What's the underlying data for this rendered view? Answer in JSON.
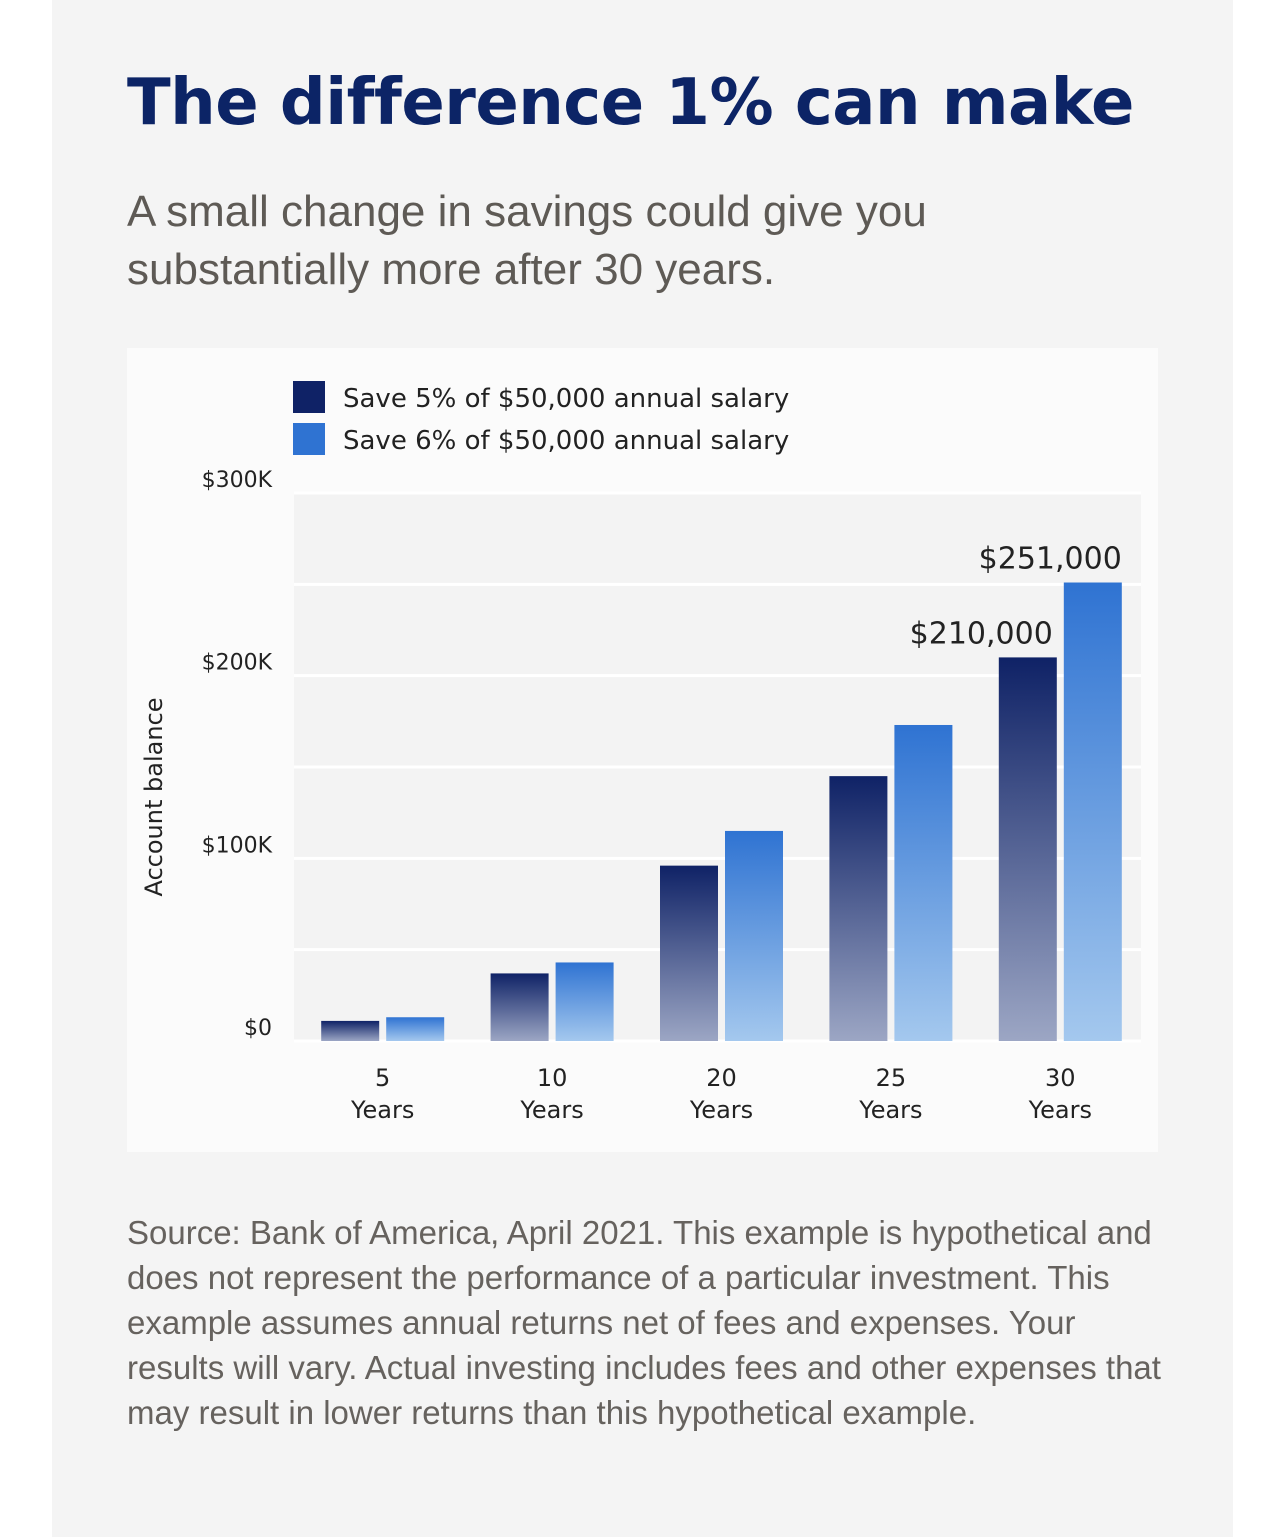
{
  "title": "The difference 1% can make",
  "subtitle": "A small change in savings could give you substantially more after 30 years.",
  "source": "Source: Bank of America, April 2021. This example is hypothetical and does not represent the performance of a particular investment. This example assumes annual returns net of fees and expenses. Your results will vary. Actual investing includes fees and other expenses that may result in lower returns than this hypothetical example.",
  "colors": {
    "title": "#0c2466",
    "series_5_top": "#0f2266",
    "series_5_bottom": "#9ca6c4",
    "series_6_top": "#2f73d2",
    "series_6_bottom": "#a4c8ee"
  },
  "chart_data": {
    "type": "bar",
    "categories": [
      [
        "5",
        "Years"
      ],
      [
        "10",
        "Years"
      ],
      [
        "20",
        "Years"
      ],
      [
        "25",
        "Years"
      ],
      [
        "30",
        "Years"
      ]
    ],
    "series": [
      {
        "name": "Save 5% of $50,000 annual salary",
        "values": [
          11000,
          37000,
          96000,
          145000,
          210000
        ]
      },
      {
        "name": "Save 6% of $50,000 annual salary",
        "values": [
          13000,
          43000,
          115000,
          173000,
          251000
        ]
      }
    ],
    "data_labels": [
      {
        "series": 0,
        "category": 4,
        "text": "$210,000"
      },
      {
        "series": 1,
        "category": 4,
        "text": "$251,000"
      }
    ],
    "ylabel": "Account balance",
    "ylim": [
      0,
      300000
    ],
    "yticks": [
      {
        "value": 0,
        "label": "$0"
      },
      {
        "value": 100000,
        "label": "$100K"
      },
      {
        "value": 200000,
        "label": "$200K"
      },
      {
        "value": 300000,
        "label": "$300K"
      }
    ],
    "gridlines": [
      50000,
      100000,
      150000,
      200000,
      250000,
      300000
    ],
    "grid": true,
    "legend": "top-left"
  }
}
